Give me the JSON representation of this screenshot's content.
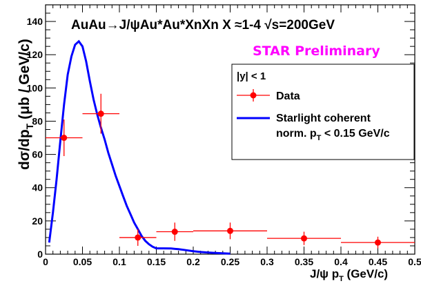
{
  "chart_data": {
    "type": "scatter",
    "title": "AuAu→J/ψAu*Au*XnXn  X ≈1-4    √s=200GeV",
    "annotation": "STAR Preliminary",
    "xlabel_main": "J/ψ p",
    "xlabel_sub": "T",
    "xlabel_unit": " (GeV/c)",
    "ylabel_main": "dσ/dp",
    "ylabel_sub": "T",
    "ylabel_unit": " (μb / GeV/c)",
    "xlim": [
      0,
      0.5
    ],
    "ylim": [
      0,
      150
    ],
    "x_ticks": [
      "0",
      "0.05",
      "0.1",
      "0.15",
      "0.2",
      "0.25",
      "0.3",
      "0.35",
      "0.4",
      "0.45",
      "0.5"
    ],
    "y_ticks": [
      "0",
      "20",
      "40",
      "60",
      "80",
      "100",
      "120",
      "140"
    ],
    "legend": {
      "header": "|y| < 1",
      "data_label": "Data",
      "model_line1": "Starlight coherent",
      "model_line2_main": "norm. p",
      "model_line2_sub": "T",
      "model_line2_rest": " < 0.15 GeV/c",
      "placement": "top-right"
    },
    "series": [
      {
        "name": "Data",
        "color": "#ff0000",
        "points": [
          {
            "x": 0.025,
            "y": 70,
            "xerr": 0.025,
            "yerr": 11
          },
          {
            "x": 0.075,
            "y": 84.5,
            "xerr": 0.025,
            "yerr": 12
          },
          {
            "x": 0.125,
            "y": 10,
            "xerr": 0.025,
            "yerr": 5
          },
          {
            "x": 0.175,
            "y": 13.5,
            "xerr": 0.025,
            "yerr": 5.5
          },
          {
            "x": 0.25,
            "y": 14,
            "xerr": 0.05,
            "yerr": 5
          },
          {
            "x": 0.35,
            "y": 9.5,
            "xerr": 0.05,
            "yerr": 4
          },
          {
            "x": 0.45,
            "y": 7,
            "xerr": 0.05,
            "yerr": 3.5
          }
        ]
      },
      {
        "name": "Starlight coherent",
        "color": "#0000ff",
        "x": [
          0.005,
          0.01,
          0.015,
          0.02,
          0.025,
          0.03,
          0.035,
          0.04,
          0.045,
          0.05,
          0.055,
          0.06,
          0.065,
          0.07,
          0.075,
          0.08,
          0.085,
          0.09,
          0.095,
          0.1,
          0.105,
          0.11,
          0.115,
          0.12,
          0.125,
          0.13,
          0.135,
          0.14,
          0.145,
          0.15,
          0.16,
          0.17,
          0.18,
          0.19,
          0.2,
          0.21,
          0.22,
          0.23,
          0.24,
          0.25
        ],
        "y": [
          7,
          25,
          45,
          68,
          90,
          108,
          119,
          126,
          128,
          125,
          116,
          104,
          93,
          84,
          76,
          69,
          61,
          54,
          47,
          41,
          35,
          29,
          24,
          19,
          15,
          11,
          8,
          6,
          4.5,
          3.5,
          3.5,
          3.4,
          3,
          2.4,
          1.8,
          1.3,
          1,
          0.7,
          0.5,
          0.3
        ]
      }
    ]
  }
}
